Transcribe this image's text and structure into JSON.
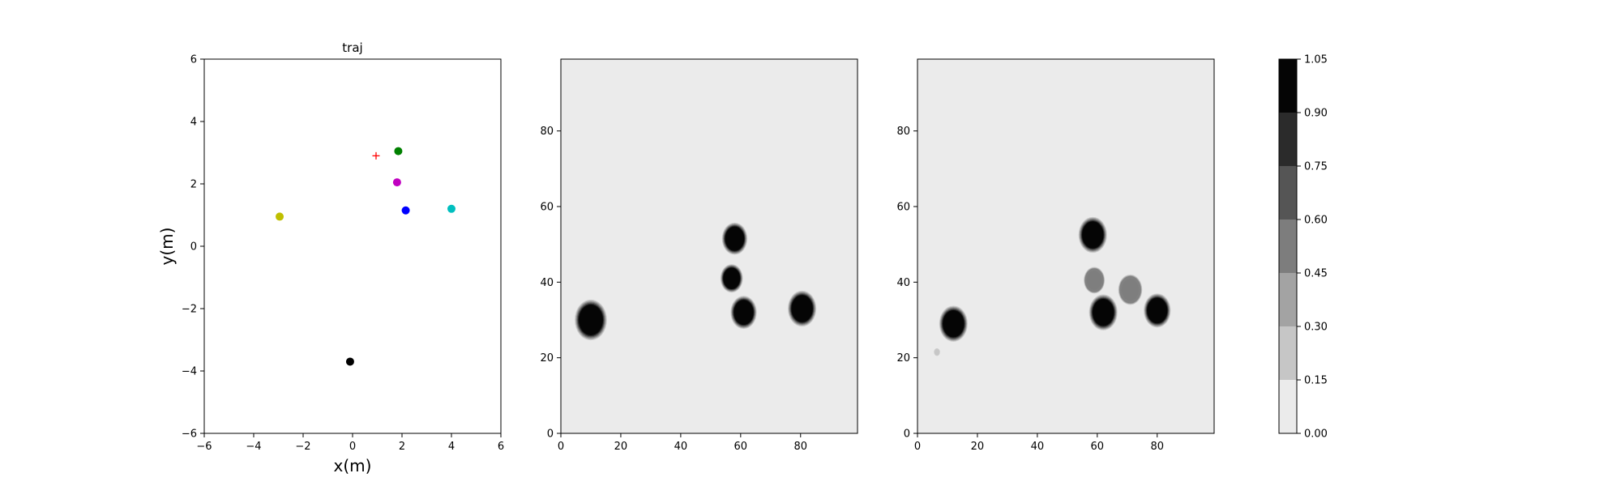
{
  "chart_data": [
    {
      "type": "scatter",
      "title": "traj",
      "xlabel": "x(m)",
      "ylabel": "y(m)",
      "xlim": [
        -6,
        6
      ],
      "ylim": [
        -6,
        6
      ],
      "xticks": [
        -6,
        -4,
        -2,
        0,
        2,
        4,
        6
      ],
      "yticks": [
        -6,
        -4,
        -2,
        0,
        2,
        4,
        6
      ],
      "grid": false,
      "series": [
        {
          "marker": "plus",
          "color": "#ff0000",
          "points": [
            {
              "x": 0.95,
              "y": 2.9
            }
          ]
        },
        {
          "marker": "circle",
          "color": "#008000",
          "points": [
            {
              "x": 1.85,
              "y": 3.05
            }
          ]
        },
        {
          "marker": "circle",
          "color": "#c000c0",
          "points": [
            {
              "x": 1.8,
              "y": 2.05
            }
          ]
        },
        {
          "marker": "circle",
          "color": "#0000ff",
          "points": [
            {
              "x": 2.15,
              "y": 1.15
            }
          ]
        },
        {
          "marker": "circle",
          "color": "#00bfbf",
          "points": [
            {
              "x": 4.0,
              "y": 1.2
            }
          ]
        },
        {
          "marker": "circle",
          "color": "#bfbf00",
          "points": [
            {
              "x": -2.95,
              "y": 0.95
            }
          ]
        },
        {
          "marker": "circle",
          "color": "#000000",
          "points": [
            {
              "x": -0.1,
              "y": -3.7
            }
          ]
        }
      ]
    },
    {
      "type": "heatmap",
      "xlim": [
        0,
        99
      ],
      "ylim": [
        0,
        99
      ],
      "xticks": [
        0,
        20,
        40,
        60,
        80
      ],
      "yticks": [
        0,
        20,
        40,
        60,
        80
      ],
      "background_level": 0.0,
      "blobs": [
        {
          "cx": 10,
          "cy": 30,
          "r": 4.3,
          "level": 1.0
        },
        {
          "cx": 58,
          "cy": 51.5,
          "r": 3.4,
          "level": 1.0
        },
        {
          "cx": 57,
          "cy": 41,
          "r": 3.0,
          "level": 1.0
        },
        {
          "cx": 61,
          "cy": 32,
          "r": 3.5,
          "level": 1.0
        },
        {
          "cx": 80.5,
          "cy": 33,
          "r": 3.8,
          "level": 1.0
        }
      ]
    },
    {
      "type": "heatmap",
      "xlim": [
        0,
        99
      ],
      "ylim": [
        0,
        99
      ],
      "xticks": [
        0,
        20,
        40,
        60,
        80
      ],
      "yticks": [
        0,
        20,
        40,
        60,
        80
      ],
      "background_level": 0.0,
      "blobs": [
        {
          "cx": 12,
          "cy": 29,
          "r": 3.8,
          "level": 1.0
        },
        {
          "cx": 58.5,
          "cy": 52.5,
          "r": 3.8,
          "level": 1.0
        },
        {
          "cx": 59,
          "cy": 40.5,
          "r": 2.8,
          "level": 0.5
        },
        {
          "cx": 62,
          "cy": 32,
          "r": 3.8,
          "level": 1.0
        },
        {
          "cx": 71,
          "cy": 38,
          "r": 3.2,
          "level": 0.5
        },
        {
          "cx": 80,
          "cy": 32.5,
          "r": 3.6,
          "level": 1.0
        },
        {
          "cx": 6.5,
          "cy": 21.5,
          "r": 0.8,
          "level": 0.2
        }
      ]
    }
  ],
  "colorbar": {
    "levels": [
      "1.05",
      "0.90",
      "0.75",
      "0.60",
      "0.45",
      "0.30",
      "0.15",
      "0.00"
    ],
    "band_colors": [
      "#050505",
      "#2b2b2b",
      "#555555",
      "#7d7d7d",
      "#a3a3a3",
      "#c6c6c6",
      "#ebebeb"
    ]
  }
}
